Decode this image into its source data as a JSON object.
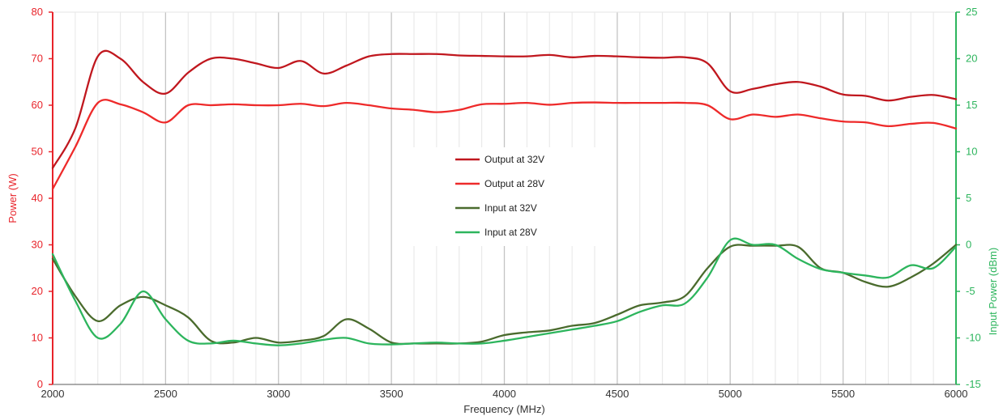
{
  "chart_data": {
    "type": "line",
    "xlabel": "Frequency (MHz)",
    "ylabel_left": "Power (W)",
    "ylabel_right": "Input Power (dBm)",
    "xlim": [
      2000,
      6000
    ],
    "ylim_left": [
      0,
      80
    ],
    "ylim_right": [
      -15,
      25
    ],
    "x_ticks": [
      2000,
      2500,
      3000,
      3500,
      4000,
      4500,
      5000,
      5500,
      6000
    ],
    "y_ticks_left": [
      0,
      10,
      20,
      30,
      40,
      50,
      60,
      70,
      80
    ],
    "y_ticks_right": [
      -15,
      -10,
      -5,
      0,
      5,
      10,
      15,
      20,
      25
    ],
    "grid": "vertical",
    "legend_position": "center",
    "colors": {
      "left_axis": "#e8232a",
      "right_axis": "#2db55d",
      "grid": "#cfcfcf",
      "axis_text": "#333333"
    },
    "series": [
      {
        "name": "Output at 32V",
        "axis": "left",
        "color": "#c0171e",
        "x": [
          2000,
          2100,
          2200,
          2300,
          2400,
          2500,
          2600,
          2700,
          2800,
          2900,
          3000,
          3100,
          3200,
          3300,
          3400,
          3500,
          3600,
          3700,
          3800,
          3900,
          4000,
          4100,
          4200,
          4300,
          4400,
          4500,
          4600,
          4700,
          4800,
          4900,
          5000,
          5100,
          5200,
          5300,
          5400,
          5500,
          5600,
          5700,
          5800,
          5900,
          6000
        ],
        "values": [
          46.5,
          55,
          70.5,
          70,
          65,
          62.5,
          67,
          70,
          70,
          69,
          68,
          69.5,
          66.8,
          68.5,
          70.5,
          71,
          71,
          71,
          70.7,
          70.6,
          70.5,
          70.5,
          70.8,
          70.3,
          70.6,
          70.5,
          70.3,
          70.2,
          70.3,
          69,
          63,
          63.5,
          64.5,
          65,
          64,
          62.3,
          62,
          61,
          61.8,
          62.2,
          61.3
        ]
      },
      {
        "name": "Output at 28V",
        "axis": "left",
        "color": "#ee2a2a",
        "x": [
          2000,
          2100,
          2200,
          2300,
          2400,
          2500,
          2600,
          2700,
          2800,
          2900,
          3000,
          3100,
          3200,
          3300,
          3400,
          3500,
          3600,
          3700,
          3800,
          3900,
          4000,
          4100,
          4200,
          4300,
          4400,
          4500,
          4600,
          4700,
          4800,
          4900,
          5000,
          5100,
          5200,
          5300,
          5400,
          5500,
          5600,
          5700,
          5800,
          5900,
          6000
        ],
        "values": [
          42,
          51,
          60.5,
          60.2,
          58.5,
          56.3,
          60,
          60,
          60.2,
          60,
          60,
          60.3,
          59.8,
          60.5,
          60,
          59.3,
          59,
          58.5,
          59,
          60.2,
          60.3,
          60.5,
          60.1,
          60.5,
          60.6,
          60.5,
          60.5,
          60.5,
          60.5,
          60,
          57,
          58,
          57.5,
          58,
          57.2,
          56.5,
          56.3,
          55.5,
          56,
          56.2,
          55
        ]
      },
      {
        "name": "Input at 32V",
        "axis": "right",
        "color": "#4a6b2d",
        "x": [
          2000,
          2100,
          2200,
          2300,
          2400,
          2500,
          2600,
          2700,
          2800,
          2900,
          3000,
          3100,
          3200,
          3300,
          3400,
          3500,
          3600,
          3700,
          3800,
          3900,
          4000,
          4100,
          4200,
          4300,
          4400,
          4500,
          4600,
          4700,
          4800,
          4900,
          5000,
          5100,
          5200,
          5300,
          5400,
          5500,
          5600,
          5700,
          5800,
          5900,
          6000
        ],
        "values": [
          -1.5,
          -5.5,
          -8.2,
          -6.5,
          -5.6,
          -6.5,
          -7.8,
          -10.3,
          -10.5,
          -10,
          -10.5,
          -10.3,
          -9.8,
          -8,
          -9,
          -10.5,
          -10.6,
          -10.6,
          -10.6,
          -10.4,
          -9.7,
          -9.4,
          -9.2,
          -8.7,
          -8.4,
          -7.5,
          -6.5,
          -6.2,
          -5.5,
          -2.5,
          -0.2,
          -0.1,
          -0.1,
          -0.2,
          -2.5,
          -3,
          -4,
          -4.5,
          -3.5,
          -2,
          0
        ]
      },
      {
        "name": "Input at 28V",
        "axis": "right",
        "color": "#2db55d",
        "x": [
          2000,
          2100,
          2200,
          2300,
          2400,
          2500,
          2600,
          2700,
          2800,
          2900,
          3000,
          3100,
          3200,
          3300,
          3400,
          3500,
          3600,
          3700,
          3800,
          3900,
          4000,
          4100,
          4200,
          4300,
          4400,
          4500,
          4600,
          4700,
          4800,
          4900,
          5000,
          5100,
          5200,
          5300,
          5400,
          5500,
          5600,
          5700,
          5800,
          5900,
          6000
        ],
        "values": [
          -1,
          -6,
          -10,
          -8.5,
          -5,
          -8,
          -10.3,
          -10.6,
          -10.3,
          -10.6,
          -10.8,
          -10.6,
          -10.2,
          -10,
          -10.6,
          -10.7,
          -10.6,
          -10.5,
          -10.6,
          -10.6,
          -10.3,
          -9.9,
          -9.5,
          -9.1,
          -8.7,
          -8.2,
          -7.2,
          -6.5,
          -6.3,
          -3.5,
          0.5,
          0,
          0,
          -1.5,
          -2.6,
          -3,
          -3.3,
          -3.5,
          -2.2,
          -2.5,
          -0.2
        ]
      }
    ]
  }
}
